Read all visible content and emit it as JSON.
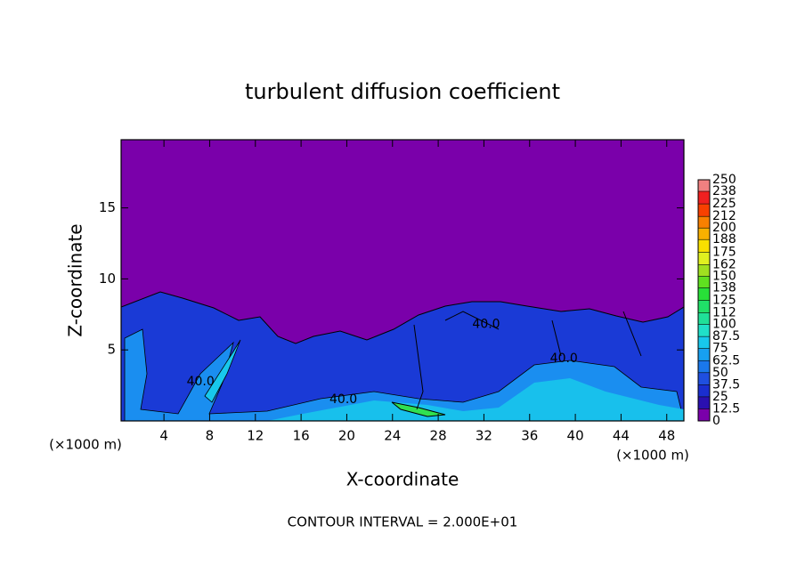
{
  "chart_data": {
    "type": "contour",
    "title": "turbulent diffusion coefficient",
    "x_label": "X-coordinate",
    "y_label": "Z-coordinate",
    "x_unit": "(×1000 m)",
    "footnote": "CONTOUR INTERVAL = 2.000E+01",
    "xlim": [
      0.25,
      49.5
    ],
    "ylim": [
      0,
      19.8
    ],
    "xticks": [
      4,
      8,
      12,
      16,
      20,
      24,
      28,
      32,
      36,
      40,
      44,
      48
    ],
    "yticks": [
      5,
      10,
      15
    ],
    "colorbar": {
      "clim": [
        0,
        250
      ],
      "levels": [
        0,
        12.5,
        25,
        37.5,
        50,
        62.5,
        75,
        87.5,
        100,
        112,
        125,
        138,
        150,
        162,
        175,
        188,
        200,
        212,
        225,
        238,
        250
      ],
      "colors": [
        "#7a00aa",
        "#2a10b0",
        "#1a2ed0",
        "#1f4fe0",
        "#1a78ec",
        "#17a0f0",
        "#18c8ec",
        "#20e0c8",
        "#20e098",
        "#20e068",
        "#28e038",
        "#60e020",
        "#a0e020",
        "#e0f020",
        "#f8e000",
        "#f8b000",
        "#f88000",
        "#f84000",
        "#f02020",
        "#f08080"
      ]
    },
    "contour_labels": [
      {
        "text": "40.0",
        "x": 7.2,
        "y": 2.75
      },
      {
        "text": "40.0",
        "x": 19.7,
        "y": 1.5
      },
      {
        "text": "40.0",
        "x": 32.2,
        "y": 6.8
      },
      {
        "text": "40.0",
        "x": 39,
        "y": 4.4
      }
    ]
  }
}
